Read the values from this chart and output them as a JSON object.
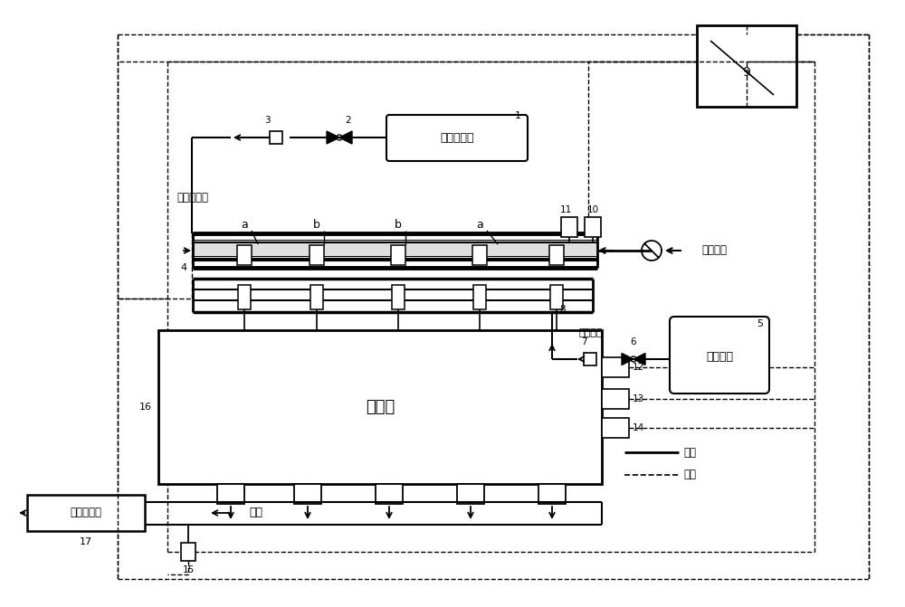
{
  "bg_color": "#ffffff",
  "line_color": "#000000",
  "components": {
    "gas_tank_label": "高压天然气",
    "h2_tank_label": "高压氢气",
    "engine_label": "发动机",
    "catalyst_label": "三元催化器",
    "fresh_air_label": "新鲜空气",
    "low_pressure_gas_label": "低压天然气",
    "low_pressure_h2_label": "低压氢气",
    "exhaust_label": "排气",
    "pipeline_label": "管路",
    "circuit_label": "电路"
  }
}
